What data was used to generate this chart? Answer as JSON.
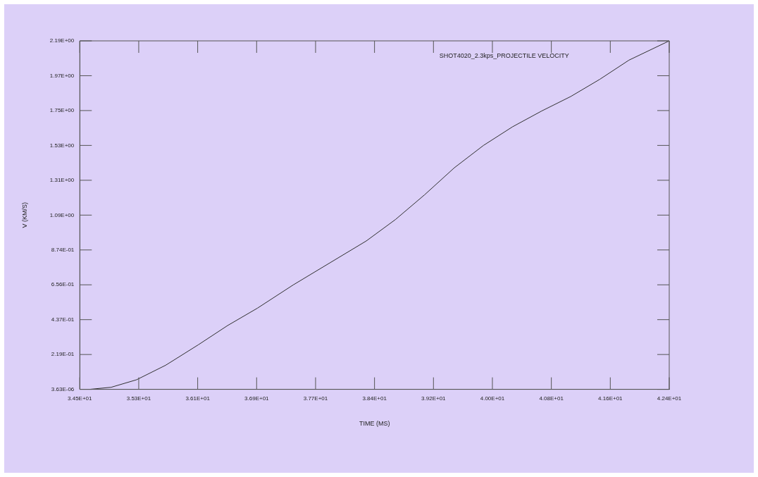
{
  "chart_data": {
    "type": "line",
    "title": "SHOT4020_2.3kps_PROJECTILE VELOCITY",
    "xlabel": "TIME (MS)",
    "ylabel": "V (KM/S)",
    "x": [
      34.63,
      34.92,
      35.26,
      35.65,
      36.09,
      36.48,
      36.88,
      37.36,
      37.85,
      38.34,
      38.73,
      39.12,
      39.52,
      39.91,
      40.3,
      40.69,
      41.08,
      41.47,
      41.86,
      42.4
    ],
    "series": [
      {
        "color": "#303030",
        "values": [
          3.63e-06,
          0.013,
          0.06,
          0.151,
          0.28,
          0.4,
          0.509,
          0.655,
          0.793,
          0.931,
          1.065,
          1.22,
          1.39,
          1.53,
          1.647,
          1.746,
          1.837,
          1.945,
          2.065,
          2.186
        ]
      }
    ],
    "xlim": [
      34.5,
      42.4
    ],
    "ylim": [
      3.63e-06,
      2.186
    ],
    "xticks": [
      {
        "value": 34.5,
        "label": "3.45E+01"
      },
      {
        "value": 35.29,
        "label": "3.53E+01"
      },
      {
        "value": 36.08,
        "label": "3.61E+01"
      },
      {
        "value": 36.87,
        "label": "3.69E+01"
      },
      {
        "value": 37.66,
        "label": "3.77E+01"
      },
      {
        "value": 38.45,
        "label": "3.84E+01"
      },
      {
        "value": 39.24,
        "label": "3.92E+01"
      },
      {
        "value": 40.03,
        "label": "4.00E+01"
      },
      {
        "value": 40.82,
        "label": "4.08E+01"
      },
      {
        "value": 41.61,
        "label": "4.16E+01"
      },
      {
        "value": 42.4,
        "label": "4.24E+01"
      }
    ],
    "yticks": [
      {
        "value": 3.63e-06,
        "label": "3.63E-06"
      },
      {
        "value": 0.2186,
        "label": "2.19E-01"
      },
      {
        "value": 0.4372,
        "label": "4.37E-01"
      },
      {
        "value": 0.6558,
        "label": "6.56E-01"
      },
      {
        "value": 0.8744,
        "label": "8.74E-01"
      },
      {
        "value": 1.093,
        "label": "1.09E+00"
      },
      {
        "value": 1.3116,
        "label": "1.31E+00"
      },
      {
        "value": 1.5302,
        "label": "1.53E+00"
      },
      {
        "value": 1.7488,
        "label": "1.75E+00"
      },
      {
        "value": 1.9674,
        "label": "1.97E+00"
      },
      {
        "value": 2.186,
        "label": "2.19E+00"
      }
    ],
    "marker": "none",
    "line_style": "solid"
  }
}
